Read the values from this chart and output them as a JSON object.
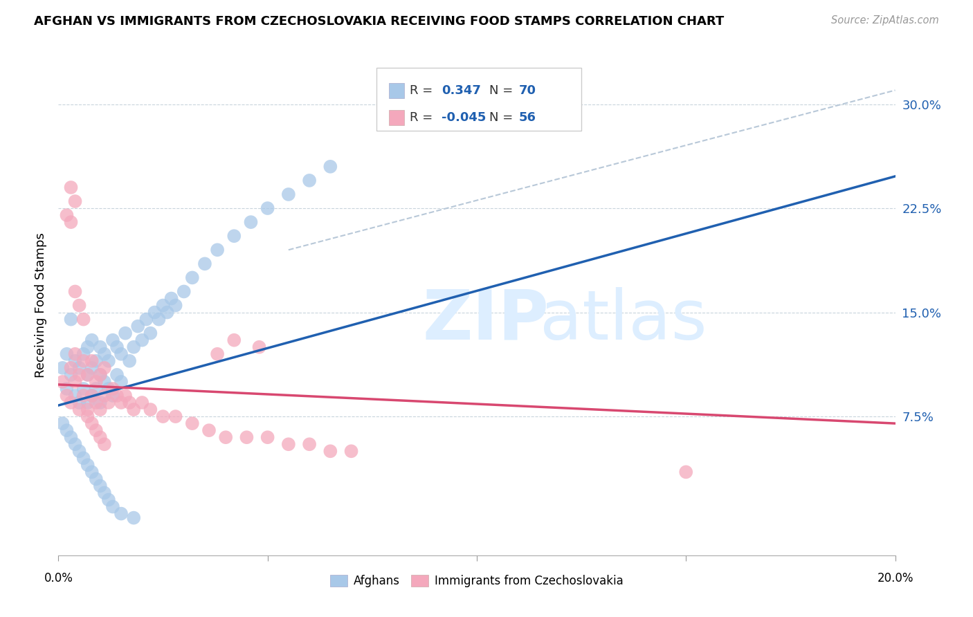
{
  "title": "AFGHAN VS IMMIGRANTS FROM CZECHOSLOVAKIA RECEIVING FOOD STAMPS CORRELATION CHART",
  "source": "Source: ZipAtlas.com",
  "ylabel": "Receiving Food Stamps",
  "ytick_labels": [
    "7.5%",
    "15.0%",
    "22.5%",
    "30.0%"
  ],
  "ytick_values": [
    0.075,
    0.15,
    0.225,
    0.3
  ],
  "xlim": [
    0.0,
    0.2
  ],
  "ylim": [
    -0.025,
    0.335
  ],
  "blue_color": "#a8c8e8",
  "pink_color": "#f4a8bc",
  "blue_line_color": "#2060b0",
  "pink_line_color": "#d84870",
  "dashed_line_color": "#b8c8d8",
  "legend_label_blue": "Afghans",
  "legend_label_pink": "Immigrants from Czechoslovakia",
  "blue_scatter_x": [
    0.001,
    0.002,
    0.002,
    0.003,
    0.003,
    0.004,
    0.004,
    0.005,
    0.005,
    0.006,
    0.006,
    0.007,
    0.007,
    0.007,
    0.008,
    0.008,
    0.008,
    0.009,
    0.009,
    0.01,
    0.01,
    0.01,
    0.011,
    0.011,
    0.012,
    0.012,
    0.013,
    0.013,
    0.014,
    0.014,
    0.015,
    0.015,
    0.016,
    0.017,
    0.018,
    0.019,
    0.02,
    0.021,
    0.022,
    0.023,
    0.024,
    0.025,
    0.026,
    0.027,
    0.028,
    0.03,
    0.032,
    0.035,
    0.038,
    0.042,
    0.046,
    0.05,
    0.055,
    0.06,
    0.065,
    0.001,
    0.002,
    0.003,
    0.004,
    0.005,
    0.006,
    0.007,
    0.008,
    0.009,
    0.01,
    0.011,
    0.012,
    0.013,
    0.015,
    0.018
  ],
  "blue_scatter_y": [
    0.11,
    0.095,
    0.12,
    0.105,
    0.145,
    0.09,
    0.115,
    0.085,
    0.11,
    0.095,
    0.12,
    0.085,
    0.105,
    0.125,
    0.09,
    0.11,
    0.13,
    0.095,
    0.115,
    0.085,
    0.105,
    0.125,
    0.1,
    0.12,
    0.095,
    0.115,
    0.09,
    0.13,
    0.105,
    0.125,
    0.1,
    0.12,
    0.135,
    0.115,
    0.125,
    0.14,
    0.13,
    0.145,
    0.135,
    0.15,
    0.145,
    0.155,
    0.15,
    0.16,
    0.155,
    0.165,
    0.175,
    0.185,
    0.195,
    0.205,
    0.215,
    0.225,
    0.235,
    0.245,
    0.255,
    0.07,
    0.065,
    0.06,
    0.055,
    0.05,
    0.045,
    0.04,
    0.035,
    0.03,
    0.025,
    0.02,
    0.015,
    0.01,
    0.005,
    0.002
  ],
  "pink_scatter_x": [
    0.001,
    0.002,
    0.003,
    0.003,
    0.004,
    0.004,
    0.005,
    0.005,
    0.006,
    0.006,
    0.007,
    0.007,
    0.008,
    0.008,
    0.009,
    0.009,
    0.01,
    0.01,
    0.011,
    0.011,
    0.012,
    0.013,
    0.014,
    0.015,
    0.016,
    0.017,
    0.018,
    0.02,
    0.022,
    0.025,
    0.028,
    0.032,
    0.036,
    0.04,
    0.045,
    0.05,
    0.055,
    0.06,
    0.065,
    0.07,
    0.002,
    0.003,
    0.004,
    0.005,
    0.006,
    0.007,
    0.008,
    0.009,
    0.01,
    0.011,
    0.038,
    0.042,
    0.048,
    0.15,
    0.003,
    0.004
  ],
  "pink_scatter_y": [
    0.1,
    0.09,
    0.11,
    0.085,
    0.1,
    0.12,
    0.08,
    0.105,
    0.09,
    0.115,
    0.08,
    0.105,
    0.09,
    0.115,
    0.085,
    0.1,
    0.08,
    0.105,
    0.09,
    0.11,
    0.085,
    0.095,
    0.09,
    0.085,
    0.09,
    0.085,
    0.08,
    0.085,
    0.08,
    0.075,
    0.075,
    0.07,
    0.065,
    0.06,
    0.06,
    0.06,
    0.055,
    0.055,
    0.05,
    0.05,
    0.22,
    0.215,
    0.165,
    0.155,
    0.145,
    0.075,
    0.07,
    0.065,
    0.06,
    0.055,
    0.12,
    0.13,
    0.125,
    0.035,
    0.24,
    0.23
  ],
  "blue_line_x": [
    0.0,
    0.2
  ],
  "blue_line_y": [
    0.083,
    0.248
  ],
  "pink_line_x": [
    0.0,
    0.2
  ],
  "pink_line_y": [
    0.098,
    0.07
  ],
  "dash_line_x": [
    0.055,
    0.2
  ],
  "dash_line_y": [
    0.195,
    0.31
  ]
}
